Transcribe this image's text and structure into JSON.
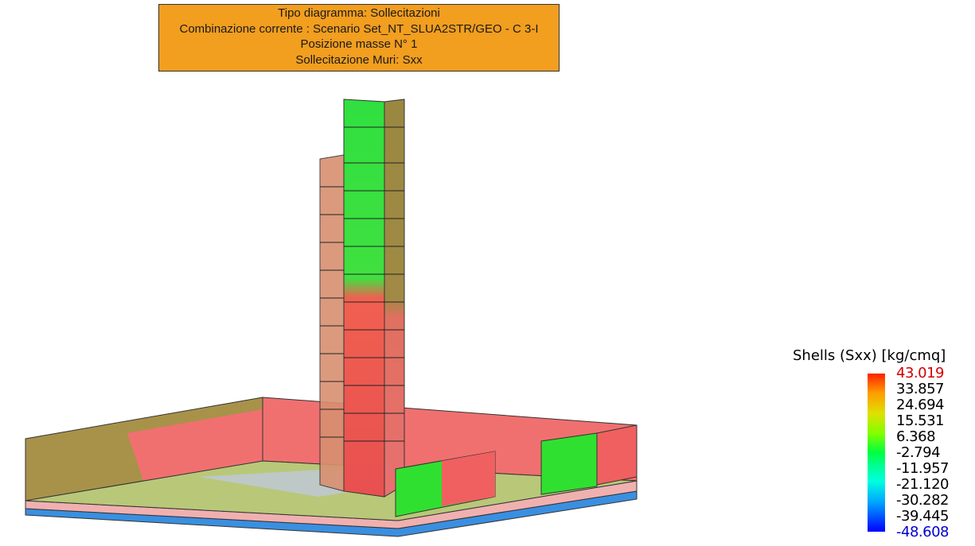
{
  "header": {
    "lines": [
      "Tipo diagramma: Sollecitazioni",
      "Combinazione corrente : Scenario Set_NT_SLUA2STR/GEO - C 3-I",
      "Posizione masse N° 1",
      "Sollecitazione Muri: Sxx"
    ]
  },
  "legend": {
    "title": "Shells (Sxx) [kg/cmq]",
    "labels": [
      "43.019",
      "33.857",
      "24.694",
      "15.531",
      "6.368",
      "-2.794",
      "-11.957",
      "-21.120",
      "-30.282",
      "-39.445",
      "-48.608"
    ]
  }
}
